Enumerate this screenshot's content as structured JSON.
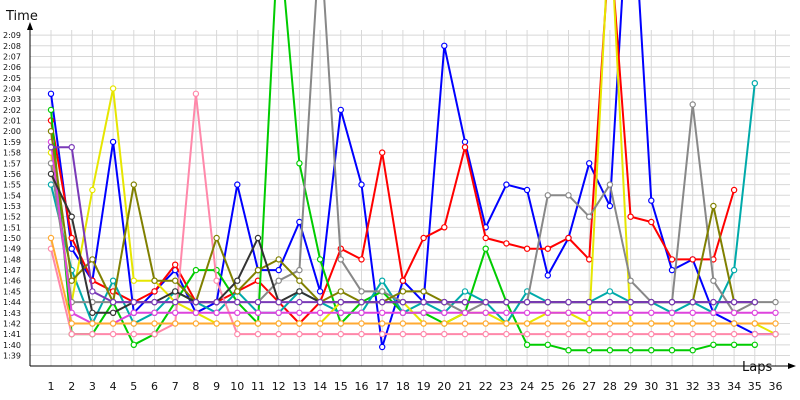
{
  "chart_data": {
    "type": "line",
    "ylabel": "Time",
    "xlabel": "Laps",
    "x": [
      1,
      2,
      3,
      4,
      5,
      6,
      7,
      8,
      9,
      10,
      11,
      12,
      13,
      14,
      15,
      16,
      17,
      18,
      19,
      20,
      21,
      22,
      23,
      24,
      25,
      26,
      27,
      28,
      29,
      30,
      31,
      32,
      33,
      34,
      35,
      36
    ],
    "x_tick_labels": [
      "1",
      "2",
      "3",
      "4",
      "5",
      "6",
      "7",
      "8",
      "9",
      "10",
      "11",
      "12",
      "13",
      "14",
      "15",
      "16",
      "17",
      "18",
      "19",
      "20",
      "21",
      "22",
      "23",
      "24",
      "25",
      "26",
      "27",
      "28",
      "29",
      "30",
      "31",
      "32",
      "33",
      "34",
      "35",
      "36"
    ],
    "y_tick_labels": [
      "1:39",
      "1:40",
      "1:41",
      "1:42",
      "1:43",
      "1:44",
      "1:45",
      "1:46",
      "1:47",
      "1:48",
      "1:49",
      "1:50",
      "1:51",
      "1:52",
      "1:53",
      "1:54",
      "1:55",
      "1:56",
      "1:57",
      "1:58",
      "1:59",
      "2:00",
      "2:01",
      "2:02",
      "2:03",
      "2:04",
      "2:05",
      "2:06",
      "2:07",
      "2:08",
      "2:09"
    ],
    "y_range_seconds": [
      99,
      129
    ],
    "grid": true,
    "series": [
      {
        "color": "#0000ff",
        "values": [
          123.5,
          109,
          106,
          119,
          103,
          105,
          107,
          103,
          104,
          115,
          107,
          107,
          111.5,
          105,
          122,
          115,
          99.8,
          106,
          104,
          128,
          119,
          111,
          115,
          114.5,
          106.5,
          110,
          117,
          113,
          146,
          113.5,
          107,
          108,
          103,
          102,
          101,
          101
        ]
      },
      {
        "color": "#ff0000",
        "values": [
          121,
          110,
          106,
          105,
          104,
          105,
          107.5,
          104,
          104,
          105,
          106,
          104,
          102,
          104,
          109,
          108,
          118,
          106,
          110,
          111,
          118.5,
          110,
          109.5,
          109,
          109,
          110,
          108,
          138,
          112,
          111.5,
          108,
          108,
          108,
          114.5,
          null,
          null
        ]
      },
      {
        "color": "#00cc00",
        "values": [
          122,
          101,
          101,
          104,
          100,
          101,
          104,
          107,
          107,
          104,
          102,
          139,
          117,
          108,
          102,
          104,
          105,
          103,
          103,
          102,
          103,
          109,
          104,
          100,
          100,
          99.5,
          99.5,
          99.5,
          99.5,
          99.5,
          99.5,
          99.5,
          100,
          100,
          100,
          null
        ]
      },
      {
        "color": "#00aaaa",
        "values": [
          115,
          107,
          102,
          106,
          102,
          103,
          105,
          104,
          103,
          105,
          103,
          103,
          105,
          104,
          103,
          103,
          106,
          103,
          104,
          103,
          105,
          104,
          102,
          105,
          104,
          104,
          104,
          105,
          104,
          104,
          103,
          104,
          103,
          107,
          124.5,
          null
        ]
      },
      {
        "color": "#e6e600",
        "values": [
          118,
          104,
          114.5,
          124,
          106,
          106,
          104,
          103,
          102,
          102,
          102,
          102,
          102,
          102,
          104,
          104,
          104,
          104,
          102,
          102,
          103,
          103,
          102,
          102,
          103,
          103,
          102,
          140,
          102,
          102,
          102,
          102,
          102,
          102,
          102,
          101
        ]
      },
      {
        "color": "#ff88aa",
        "values": [
          109,
          101,
          101,
          101,
          101,
          101,
          102,
          123.5,
          106,
          101,
          101,
          101,
          101,
          101,
          101,
          101,
          101,
          101,
          101,
          101,
          101,
          101,
          101,
          101,
          101,
          101,
          101,
          101,
          101,
          101,
          101,
          101,
          101,
          101,
          101,
          101
        ]
      },
      {
        "color": "#888888",
        "values": [
          117,
          104,
          104,
          104,
          104,
          104,
          104,
          104,
          104,
          104,
          104,
          106,
          107,
          138.5,
          108,
          105,
          105,
          104,
          104,
          104,
          103,
          104,
          104,
          104,
          114,
          114,
          112,
          115,
          106,
          104,
          104,
          122.5,
          106,
          103,
          104,
          104
        ]
      },
      {
        "color": "#dd44dd",
        "values": [
          119,
          103,
          102,
          102,
          103,
          103,
          103,
          103,
          103,
          103,
          103,
          103,
          103,
          103,
          103,
          103,
          103,
          103,
          103,
          103,
          103,
          103,
          103,
          103,
          103,
          103,
          103,
          103,
          103,
          103,
          103,
          103,
          103,
          103,
          103,
          103
        ]
      },
      {
        "color": "#808000",
        "values": [
          120,
          106,
          108,
          104,
          115,
          106,
          106,
          104,
          110,
          105,
          107,
          108,
          106,
          104,
          105,
          104,
          104,
          105,
          105,
          104,
          104,
          104,
          104,
          104,
          104,
          104,
          104,
          104,
          104,
          104,
          104,
          104,
          113,
          104,
          104,
          null
        ]
      },
      {
        "color": "#333333",
        "values": [
          116,
          112,
          103,
          103,
          104,
          104,
          105,
          104,
          104,
          106,
          110,
          104,
          105,
          104,
          104,
          104,
          104,
          104,
          104,
          104,
          104,
          104,
          104,
          104,
          104,
          104,
          104,
          104,
          104,
          104,
          104,
          104,
          104,
          104,
          104,
          null
        ]
      },
      {
        "color": "#7a3ab8",
        "values": [
          118.5,
          118.5,
          105,
          104,
          104,
          104,
          104,
          104,
          104,
          104,
          104,
          104,
          104,
          104,
          104,
          104,
          104,
          104,
          104,
          104,
          104,
          104,
          104,
          104,
          104,
          104,
          104,
          104,
          104,
          104,
          104,
          104,
          104,
          104,
          104,
          null
        ]
      },
      {
        "color": "#ffaa33",
        "values": [
          110,
          102,
          102,
          102,
          102,
          102,
          102,
          102,
          102,
          102,
          102,
          102,
          102,
          102,
          102,
          102,
          102,
          102,
          102,
          102,
          102,
          102,
          102,
          102,
          102,
          102,
          102,
          102,
          102,
          102,
          102,
          102,
          102,
          102,
          102,
          102
        ]
      }
    ]
  }
}
